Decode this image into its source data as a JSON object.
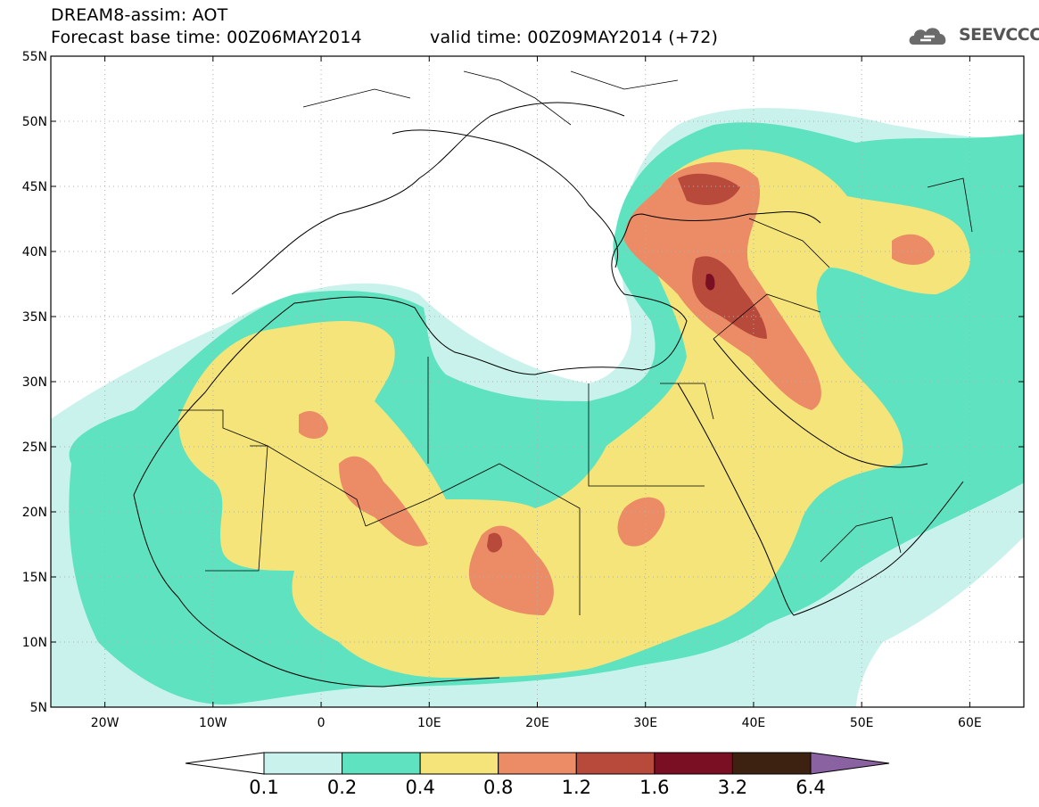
{
  "header": {
    "line1": "DREAM8-assim: AOT",
    "line2": "Forecast base time: 00Z06MAY2014",
    "valid": "valid time: 00Z09MAY2014 (+72)"
  },
  "logo": {
    "text": "SEEVCCC",
    "icon": "cloud-icon"
  },
  "map": {
    "lon_range": [
      -25,
      65
    ],
    "lat_range": [
      5,
      55
    ],
    "lon_ticks": [
      {
        "v": -20,
        "label": "20W"
      },
      {
        "v": -10,
        "label": "10W"
      },
      {
        "v": 0,
        "label": "0"
      },
      {
        "v": 10,
        "label": "10E"
      },
      {
        "v": 20,
        "label": "20E"
      },
      {
        "v": 30,
        "label": "30E"
      },
      {
        "v": 40,
        "label": "40E"
      },
      {
        "v": 50,
        "label": "50E"
      },
      {
        "v": 60,
        "label": "60E"
      }
    ],
    "lat_ticks": [
      {
        "v": 55,
        "label": "55N"
      },
      {
        "v": 50,
        "label": "50N"
      },
      {
        "v": 45,
        "label": "45N"
      },
      {
        "v": 40,
        "label": "40N"
      },
      {
        "v": 35,
        "label": "35N"
      },
      {
        "v": 30,
        "label": "30N"
      },
      {
        "v": 25,
        "label": "25N"
      },
      {
        "v": 20,
        "label": "20N"
      },
      {
        "v": 15,
        "label": "15N"
      },
      {
        "v": 10,
        "label": "10N"
      },
      {
        "v": 5,
        "label": "5N"
      }
    ],
    "grid": true
  },
  "colorbar": {
    "labels": [
      "0.1",
      "0.2",
      "0.4",
      "0.8",
      "1.2",
      "1.6",
      "3.2",
      "6.4"
    ],
    "colors": [
      "#ffffff",
      "#c9f2ec",
      "#5fe2c0",
      "#f4e47a",
      "#eb8c66",
      "#b84a3c",
      "#7a0e22",
      "#3d2212",
      "#8a62a2"
    ]
  }
}
